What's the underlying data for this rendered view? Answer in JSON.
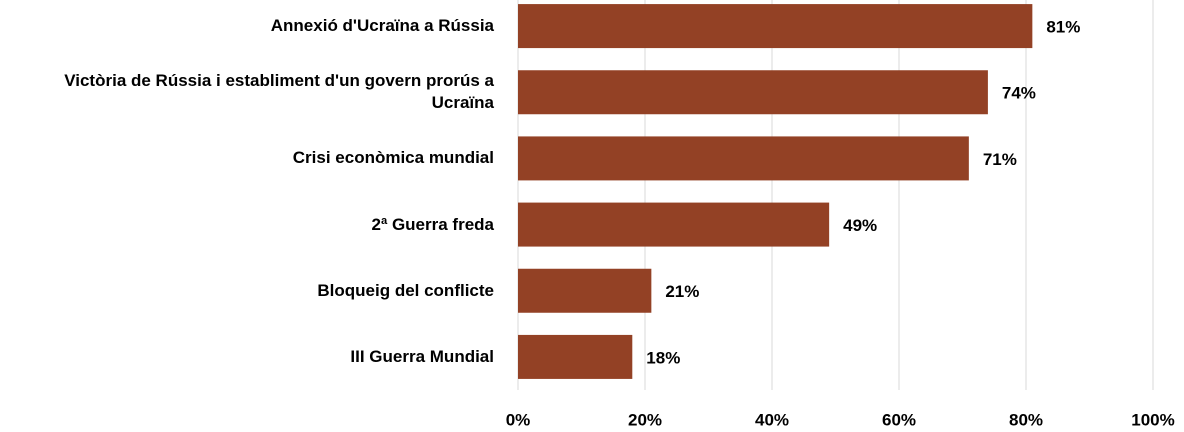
{
  "chart_data": {
    "type": "barh",
    "categories": [
      "Annexió d'Ucraïna a Rússia",
      "Victòria de Rússia i establiment d'un govern prorús a Ucraïna",
      "Crisi econòmica mundial",
      "2ª Guerra freda",
      "Bloqueig del conflicte",
      "III Guerra Mundial"
    ],
    "values": [
      81,
      74,
      71,
      49,
      21,
      18
    ],
    "value_labels": [
      "81%",
      "74%",
      "71%",
      "49%",
      "21%",
      "18%"
    ],
    "color": "#934125",
    "xlim": [
      0,
      100
    ],
    "xticks": [
      {
        "value": 0,
        "label": "0%"
      },
      {
        "value": 20,
        "label": "20%"
      },
      {
        "value": 40,
        "label": "40%"
      },
      {
        "value": 60,
        "label": "60%"
      },
      {
        "value": 80,
        "label": "80%"
      },
      {
        "value": 100,
        "label": "100%"
      }
    ],
    "grid": true
  }
}
